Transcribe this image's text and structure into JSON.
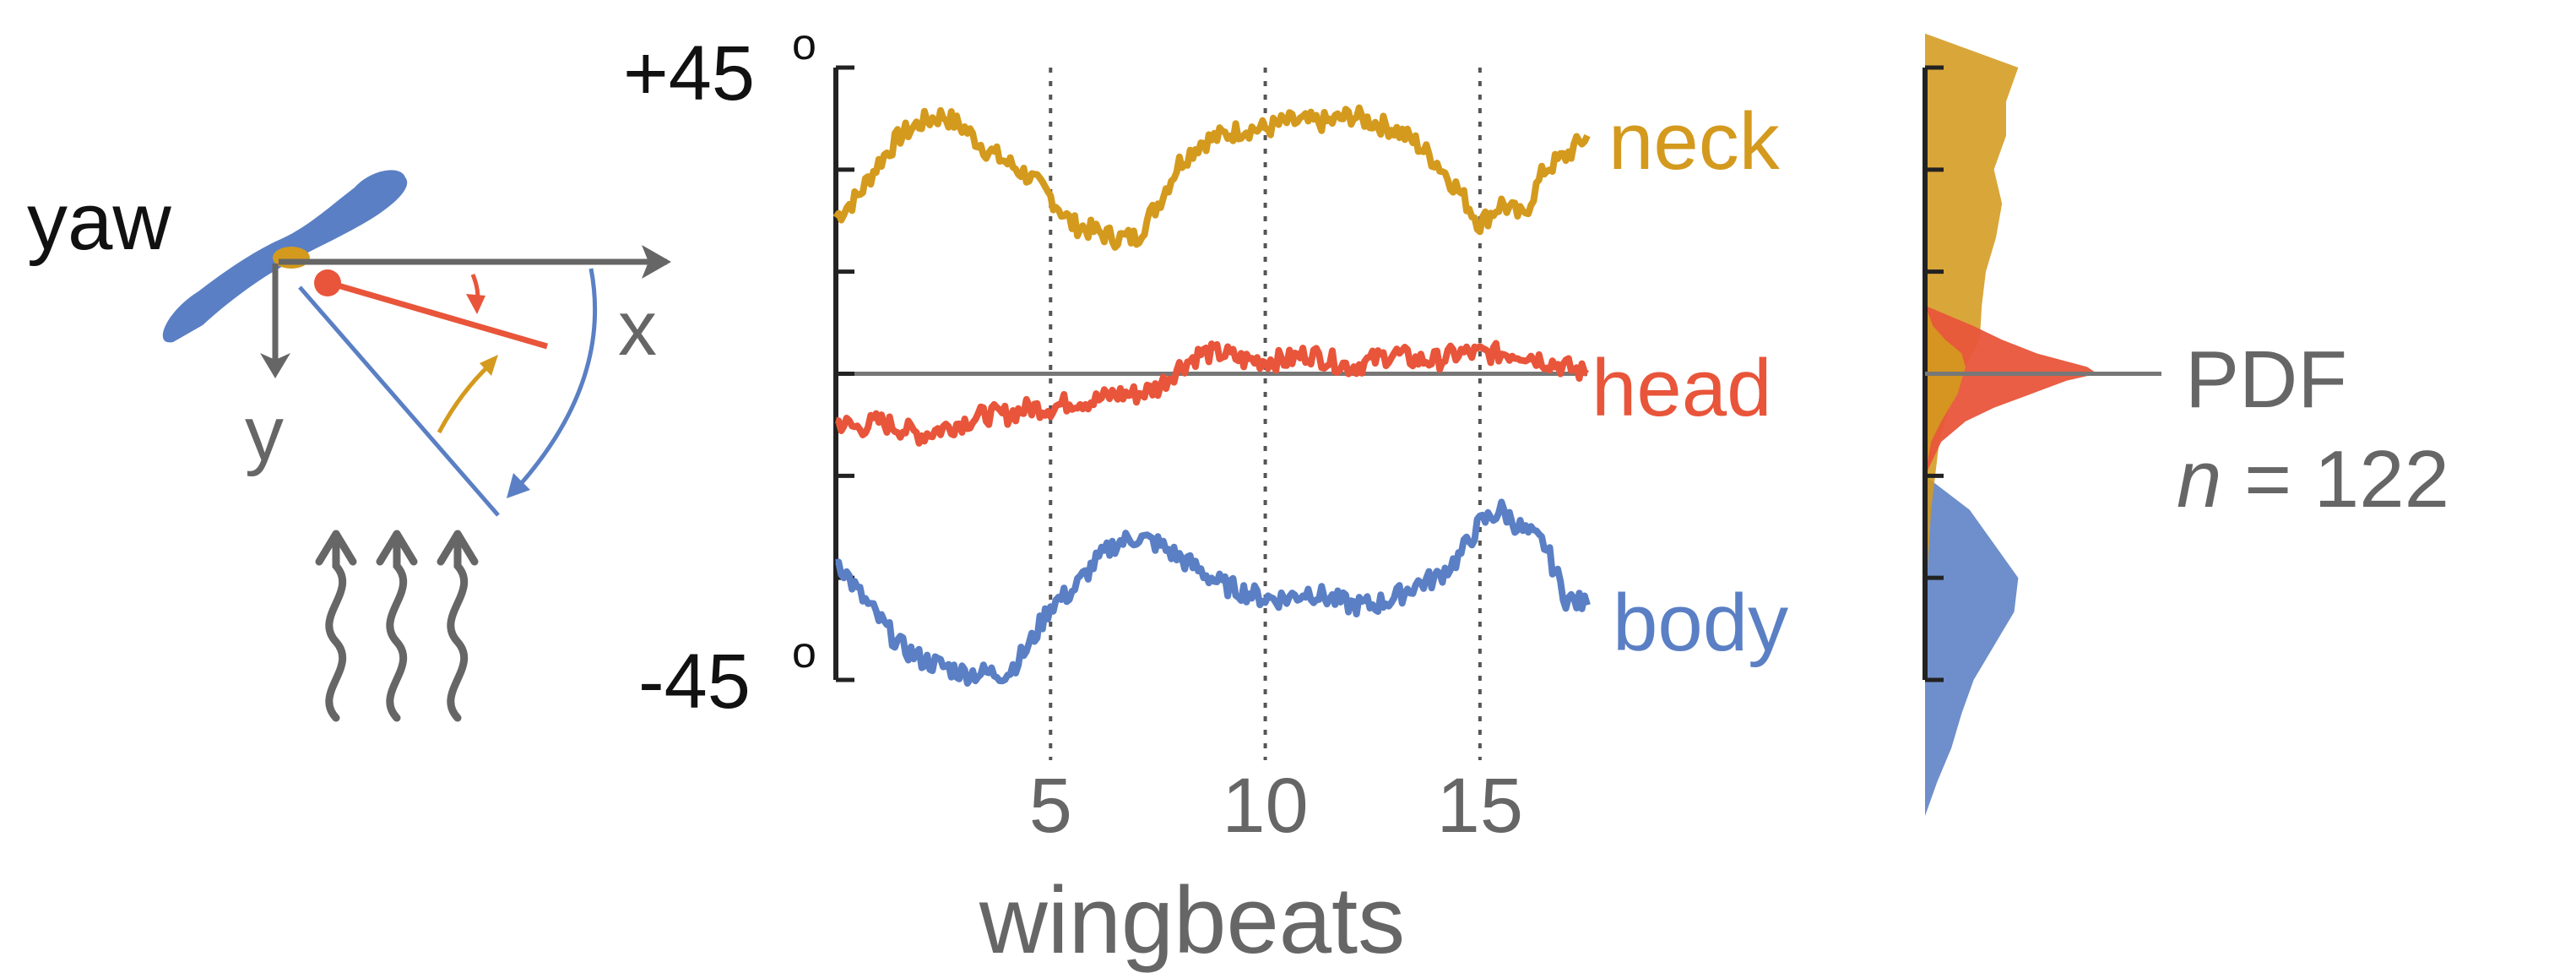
{
  "colors": {
    "neck": "#d49a1e",
    "head": "#e8553a",
    "body": "#5a7fc4",
    "axis": "#333333",
    "grid": "#555555",
    "text_dark": "#111111",
    "text_gray": "#666666"
  },
  "schematic": {
    "yaw_label": "yaw",
    "x_label": "x",
    "y_label": "y"
  },
  "chart_data": {
    "type": "line",
    "y_top_label": "+45",
    "y_bottom_label": "-45",
    "degree_symbol": "o",
    "ylim": [
      -45,
      45
    ],
    "xlim": [
      0,
      17.5
    ],
    "yticks": [
      -45,
      -30,
      -15,
      0,
      15,
      30,
      45
    ],
    "vlines": [
      5,
      10,
      15
    ],
    "xticks": [
      5,
      10,
      15
    ],
    "xtick_labels": [
      "5",
      "10",
      "15"
    ],
    "xlabel": "wingbeats",
    "series": [
      {
        "name": "neck",
        "x": [
          0,
          0.5,
          1,
          1.5,
          2,
          2.5,
          3,
          3.5,
          4,
          4.5,
          5,
          5.5,
          6,
          6.5,
          7,
          7.5,
          8,
          8.5,
          9,
          9.5,
          10,
          10.5,
          11,
          11.5,
          12,
          12.5,
          13,
          13.5,
          14,
          14.5,
          15,
          15.5,
          16,
          16.5,
          17,
          17.5
        ],
        "y": [
          23,
          26,
          31,
          35,
          37,
          38,
          36,
          33,
          31,
          29,
          26,
          22,
          21,
          20,
          20,
          25,
          31,
          34,
          35,
          36,
          36,
          37,
          37,
          37,
          38,
          37,
          36,
          34,
          31,
          27,
          22,
          25,
          23,
          30,
          32,
          35
        ]
      },
      {
        "name": "head",
        "x": [
          0,
          0.5,
          1,
          1.5,
          2,
          2.5,
          3,
          3.5,
          4,
          4.5,
          5,
          5.5,
          6,
          6.5,
          7,
          7.5,
          8,
          8.5,
          9,
          9.5,
          10,
          10.5,
          11,
          11.5,
          12,
          12.5,
          13,
          13.5,
          14,
          14.5,
          15,
          15.5,
          16,
          16.5,
          17,
          17.5
        ],
        "y": [
          -7,
          -8,
          -7,
          -8,
          -9,
          -8,
          -7,
          -6,
          -6,
          -5,
          -5,
          -4,
          -4,
          -3,
          -3,
          -2,
          1,
          3,
          3,
          2,
          2,
          2,
          3,
          2,
          1,
          2,
          3,
          2,
          2,
          3,
          3,
          3,
          3,
          2,
          1,
          0
        ]
      },
      {
        "name": "body",
        "x": [
          0,
          0.5,
          1,
          1.5,
          2,
          2.5,
          3,
          3.5,
          4,
          4.5,
          5,
          5.5,
          6,
          6.5,
          7,
          7.5,
          8,
          8.5,
          9,
          9.5,
          10,
          10.5,
          11,
          11.5,
          12,
          12.5,
          13,
          13.5,
          14,
          14.5,
          15,
          15.5,
          16,
          16.5,
          17,
          17.5
        ],
        "y": [
          -27,
          -32,
          -36,
          -40,
          -42,
          -43,
          -44,
          -44,
          -44,
          -40,
          -34,
          -32,
          -28,
          -25,
          -24,
          -25,
          -27,
          -29,
          -31,
          -32,
          -33,
          -33,
          -32,
          -33,
          -34,
          -34,
          -33,
          -31,
          -30,
          -27,
          -22,
          -20,
          -23,
          -25,
          -33,
          -34
        ]
      }
    ],
    "series_labels": [
      "neck",
      "head",
      "body"
    ],
    "pdf": {
      "label": "PDF",
      "n_symbol": "n",
      "n_rest": " = 122",
      "ticks": [
        -45,
        -30,
        -15,
        0,
        15,
        30,
        45
      ],
      "distributions": [
        {
          "name": "neck",
          "y": [
            50,
            45,
            40,
            35,
            30,
            25,
            20,
            15,
            10,
            5,
            0,
            -5,
            -10,
            -15,
            -20,
            -25,
            -30,
            -35
          ],
          "width": [
            0,
            0.46,
            0.4,
            0.4,
            0.34,
            0.38,
            0.35,
            0.3,
            0.28,
            0.27,
            0.18,
            0.12,
            0.07,
            0.05,
            0.03,
            0.02,
            0.01,
            0
          ]
        },
        {
          "name": "head",
          "y": [
            10,
            7,
            5,
            3,
            1,
            0,
            -1,
            -3,
            -5,
            -7,
            -10,
            -15
          ],
          "width": [
            0,
            0.24,
            0.38,
            0.55,
            0.8,
            0.85,
            0.7,
            0.52,
            0.34,
            0.2,
            0.08,
            0
          ],
          "base_y": [
            10,
            7,
            5,
            3,
            1,
            0,
            -1,
            -3,
            -5,
            -7,
            -10,
            -15
          ],
          "base_w": [
            0,
            0.04,
            0.1,
            0.18,
            0.2,
            0.19,
            0.18,
            0.16,
            0.12,
            0.08,
            0.03,
            0
          ]
        },
        {
          "name": "body",
          "y": [
            -15,
            -20,
            -25,
            -30,
            -35,
            -40,
            -45,
            -50,
            -55,
            -60,
            -65
          ],
          "width": [
            0,
            0.22,
            0.34,
            0.46,
            0.44,
            0.34,
            0.24,
            0.18,
            0.13,
            0.06,
            0
          ]
        }
      ]
    }
  }
}
